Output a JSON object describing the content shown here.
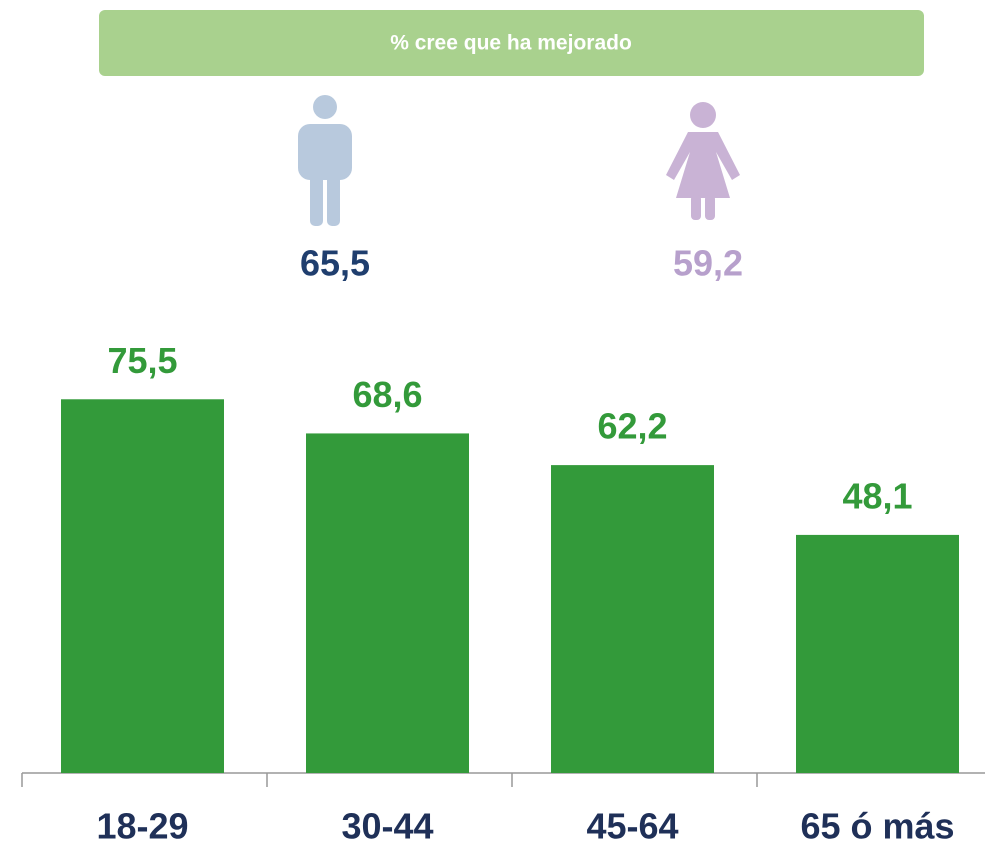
{
  "banner": {
    "text": "% cree que ha mejorado"
  },
  "summary": {
    "values": [
      65.5,
      59.2
    ],
    "value_labels": [
      "65,5",
      "59,2"
    ],
    "colors": [
      "#1f3e6e",
      "#b7a0cc"
    ]
  },
  "chart_data": {
    "type": "bar",
    "categories": [
      "18-29",
      "30-44",
      "45-64",
      "65 ó más"
    ],
    "values": [
      75.5,
      68.6,
      62.2,
      48.1
    ],
    "value_labels": [
      "75,5",
      "68,6",
      "62,2",
      "48,1"
    ],
    "color": "#339a3a",
    "ylim": [
      0,
      100
    ]
  }
}
